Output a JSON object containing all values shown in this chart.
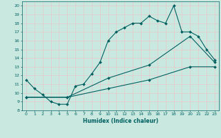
{
  "xlabel": "Humidex (Indice chaleur)",
  "bg_color": "#c8e8e0",
  "grid_color": "#e8c8c8",
  "line_color": "#006060",
  "xlim": [
    -0.5,
    23.5
  ],
  "ylim": [
    8,
    20.5
  ],
  "xticks": [
    0,
    1,
    2,
    3,
    4,
    5,
    6,
    7,
    8,
    9,
    10,
    11,
    12,
    13,
    14,
    15,
    16,
    17,
    18,
    19,
    20,
    21,
    22,
    23
  ],
  "yticks": [
    8,
    9,
    10,
    11,
    12,
    13,
    14,
    15,
    16,
    17,
    18,
    19,
    20
  ],
  "line1_x": [
    0,
    1,
    2,
    3,
    4,
    5,
    6,
    7,
    8,
    9,
    10,
    11,
    12,
    13,
    14,
    15,
    16,
    17,
    18,
    19,
    20,
    21,
    22,
    23
  ],
  "line1_y": [
    11.5,
    10.5,
    9.8,
    9.0,
    8.7,
    8.7,
    10.8,
    11.0,
    12.2,
    13.5,
    16.0,
    17.0,
    17.5,
    18.0,
    18.0,
    18.8,
    18.3,
    18.0,
    20.0,
    17.0,
    17.0,
    16.5,
    15.0,
    13.8
  ],
  "line2_x": [
    0,
    5,
    10,
    15,
    20,
    23
  ],
  "line2_y": [
    9.5,
    9.5,
    11.7,
    13.2,
    16.5,
    13.5
  ],
  "line3_x": [
    0,
    5,
    10,
    15,
    20,
    23
  ],
  "line3_y": [
    9.5,
    9.5,
    10.5,
    11.5,
    13.0,
    13.0
  ]
}
